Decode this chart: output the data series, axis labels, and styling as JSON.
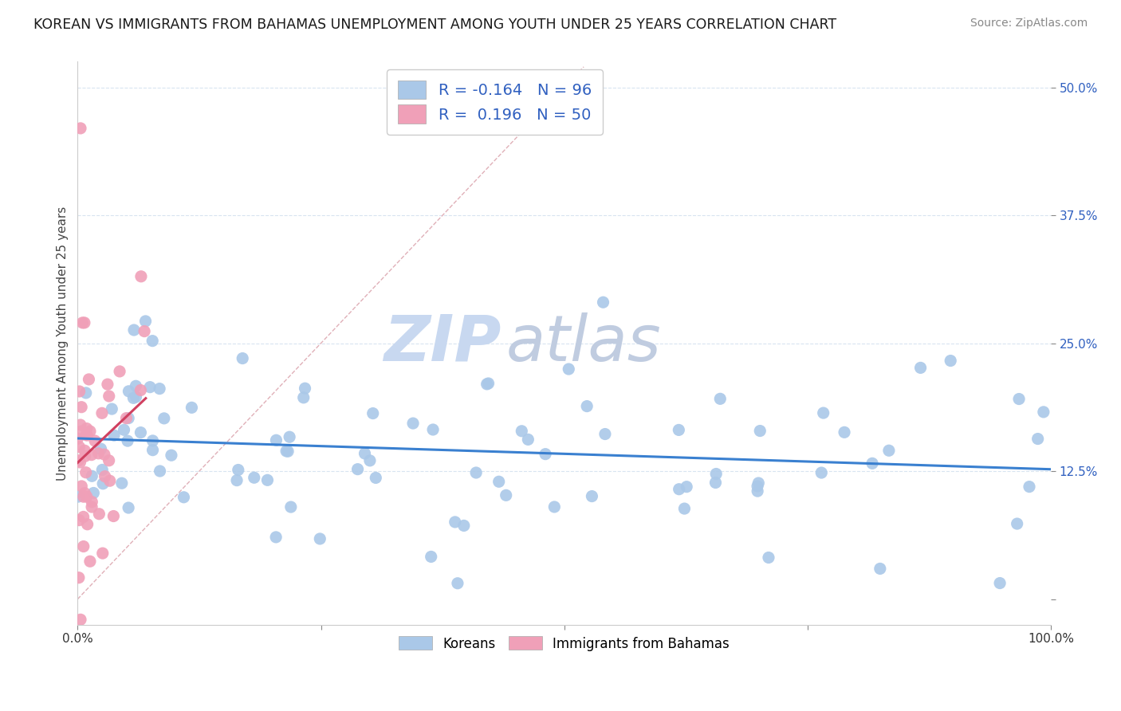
{
  "title": "KOREAN VS IMMIGRANTS FROM BAHAMAS UNEMPLOYMENT AMONG YOUTH UNDER 25 YEARS CORRELATION CHART",
  "source": "Source: ZipAtlas.com",
  "ylabel": "Unemployment Among Youth under 25 years",
  "xlim": [
    0,
    1.0
  ],
  "ylim": [
    -0.025,
    0.525
  ],
  "xticks": [
    0.0,
    0.25,
    0.5,
    0.75,
    1.0
  ],
  "xticklabels": [
    "0.0%",
    "",
    "",
    "",
    "100.0%"
  ],
  "yticks": [
    0.0,
    0.125,
    0.25,
    0.375,
    0.5
  ],
  "yticklabels": [
    "",
    "12.5%",
    "25.0%",
    "37.5%",
    "50.0%"
  ],
  "korean_color": "#aac8e8",
  "bahamas_color": "#f0a0b8",
  "korean_R": -0.164,
  "korean_N": 96,
  "bahamas_R": 0.196,
  "bahamas_N": 50,
  "korean_line_color": "#3a80d0",
  "bahamas_line_color": "#d04060",
  "diagonal_color": "#e0b0b8",
  "background_color": "#ffffff",
  "title_fontsize": 12.5,
  "source_fontsize": 10,
  "tick_color": "#3060c0",
  "legend_color": "#3060c0",
  "watermark_zip": "ZIP",
  "watermark_atlas": "atlas",
  "watermark_color_zip": "#c8d8f0",
  "watermark_color_atlas": "#c0cce0"
}
